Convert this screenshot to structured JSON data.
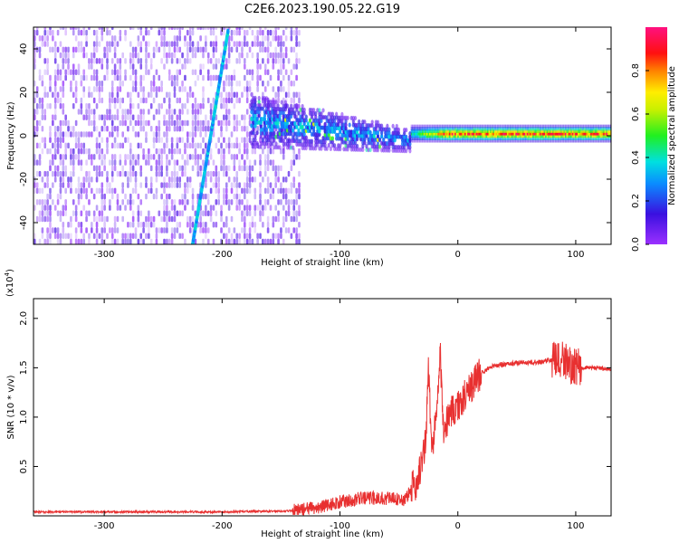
{
  "title": "C2E6.2023.190.05.22.G19",
  "chart_data": [
    {
      "type": "heatmap",
      "xlabel": "Height of straight line (km)",
      "ylabel": "Frequency (Hz)",
      "xlim": [
        -360,
        130
      ],
      "ylim": [
        -50,
        50
      ],
      "x_ticks": [
        -300,
        -200,
        -100,
        0,
        100
      ],
      "y_ticks": [
        -40,
        -20,
        0,
        20,
        40
      ],
      "colorbar": {
        "label": "Normalized spectral amplitude",
        "range": [
          0,
          1
        ],
        "ticks": [
          0.0,
          0.2,
          0.4,
          0.6,
          0.8
        ],
        "colormap": "rainbow (purple-blue-cyan-green-yellow-red-magenta)"
      },
      "features": [
        {
          "name": "noise-region",
          "x_range": [
            -360,
            -135
          ],
          "freq_range": [
            -50,
            50
          ],
          "amplitude": 0.08
        },
        {
          "name": "diagonal-track",
          "x_start": -225,
          "freq_start": -50,
          "x_end": -195,
          "freq_end": 48,
          "amplitude": 0.25
        },
        {
          "name": "signal-band-wide",
          "x_range": [
            -175,
            -40
          ],
          "freq_center": 3,
          "half_width_start": 12,
          "half_width_end": 5,
          "amplitude": 0.3
        },
        {
          "name": "signal-band-narrow",
          "x_range": [
            -40,
            130
          ],
          "freq_center": 1,
          "half_width": 2,
          "amplitude": 0.9
        }
      ]
    },
    {
      "type": "line",
      "xlabel": "Height of straight line (km)",
      "ylabel": "SNR (10 * v/v)",
      "y_multiplier": "(x10",
      "y_multiplier_exp": "4",
      "y_multiplier_close": ")",
      "xlim": [
        -360,
        130
      ],
      "ylim": [
        0,
        2.2
      ],
      "x_ticks": [
        -300,
        -200,
        -100,
        0,
        100
      ],
      "y_ticks": [
        0.5,
        1.0,
        1.5,
        2.0
      ],
      "y_tick_labels": [
        "0.5",
        "1.0",
        "1.5",
        "2.0"
      ],
      "series_color": "#e83030",
      "series": [
        {
          "x": [
            -360,
            -300,
            -200,
            -140,
            -120,
            -100,
            -80,
            -60,
            -45,
            -35,
            -30,
            -27,
            -25,
            -22,
            -20,
            -15,
            -12,
            -8,
            0,
            10,
            20,
            30,
            50,
            70,
            80,
            85,
            90,
            95,
            100,
            110,
            120,
            130
          ],
          "y": [
            0.04,
            0.04,
            0.04,
            0.05,
            0.08,
            0.14,
            0.18,
            0.18,
            0.16,
            0.35,
            0.55,
            0.8,
            1.5,
            0.65,
            0.8,
            1.7,
            0.75,
            1.05,
            1.1,
            1.3,
            1.45,
            1.52,
            1.55,
            1.56,
            1.58,
            1.55,
            1.6,
            1.52,
            1.5,
            1.5,
            1.5,
            1.48
          ]
        }
      ]
    }
  ]
}
